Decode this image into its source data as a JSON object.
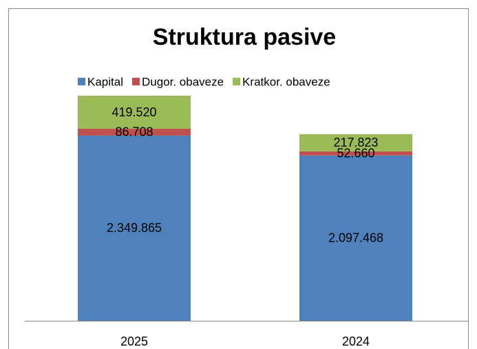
{
  "chart_data": {
    "type": "stacked_bar",
    "title": "Struktura pasive",
    "categories": [
      "2025",
      "2024"
    ],
    "series": [
      {
        "name": "Kapital",
        "color": "#4f81bd",
        "values": [
          2349865,
          2097468
        ],
        "value_labels": [
          "2.349.865",
          "2.097.468"
        ]
      },
      {
        "name": "Dugor. obaveze",
        "color": "#c0504d",
        "values": [
          86708,
          52660
        ],
        "value_labels": [
          "86.708",
          "52.660"
        ]
      },
      {
        "name": "Kratkor.  obaveze",
        "color": "#9bbb59",
        "values": [
          419520,
          217823
        ],
        "value_labels": [
          "419.520",
          "217.823"
        ]
      }
    ],
    "legend": "top"
  }
}
